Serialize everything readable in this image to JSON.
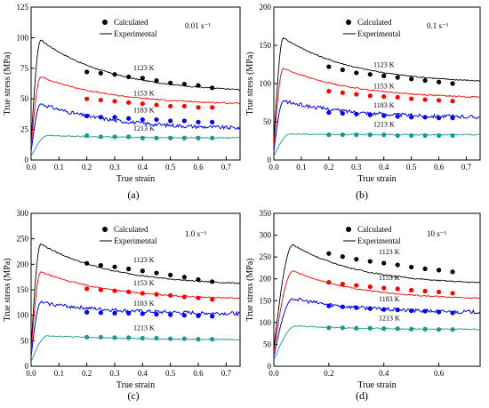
{
  "chart_data": [
    {
      "type": "line",
      "panel_label": "(a)",
      "condition": "0.01 s⁻¹",
      "xlabel": "True strain",
      "ylabel": "True stress (MPa)",
      "xlim": [
        0,
        0.75
      ],
      "ylim": [
        0,
        125
      ],
      "xticks": [
        "0.0",
        "0.1",
        "0.2",
        "0.3",
        "0.4",
        "0.5",
        "0.6",
        "0.7"
      ],
      "xtick_values": [
        0,
        0.1,
        0.2,
        0.3,
        0.4,
        0.5,
        0.6,
        0.7
      ],
      "yticks": [
        "0",
        "25",
        "50",
        "75",
        "100",
        "125"
      ],
      "ytick_values": [
        0,
        25,
        50,
        75,
        100,
        125
      ],
      "legend": {
        "calculated": "Calculated",
        "experimental": "Experimental"
      },
      "series": [
        {
          "name": "1123 K",
          "color": "#000000",
          "peak_x": 0.035,
          "peak_y": 98,
          "end_y": 55,
          "calculated": {
            "x": [
              0.2,
              0.25,
              0.3,
              0.35,
              0.4,
              0.45,
              0.5,
              0.55,
              0.6,
              0.65
            ],
            "y": [
              72,
              71,
              70,
              68,
              67,
              65,
              63,
              62,
              61,
              59
            ]
          }
        },
        {
          "name": "1153 K",
          "color": "#ff0000",
          "peak_x": 0.035,
          "peak_y": 68,
          "end_y": 45,
          "calculated": {
            "x": [
              0.2,
              0.25,
              0.3,
              0.35,
              0.4,
              0.45,
              0.5,
              0.55,
              0.6,
              0.65
            ],
            "y": [
              50,
              49,
              48,
              47,
              46,
              45,
              44,
              44,
              43,
              43
            ]
          }
        },
        {
          "name": "1183 K",
          "color": "#0000ff",
          "peak_x": 0.035,
          "peak_y": 46,
          "end_y": 25,
          "calculated": {
            "x": [
              0.2,
              0.25,
              0.3,
              0.35,
              0.4,
              0.45,
              0.5,
              0.55,
              0.6,
              0.65
            ],
            "y": [
              36,
              35,
              35,
              34,
              33,
              33,
              32,
              32,
              31,
              31
            ]
          }
        },
        {
          "name": "1213 K",
          "color": "#1a9a8a",
          "peak_x": 0.06,
          "peak_y": 20,
          "end_y": 18,
          "calculated": {
            "x": [
              0.2,
              0.25,
              0.3,
              0.35,
              0.4,
              0.45,
              0.5,
              0.55,
              0.6,
              0.65
            ],
            "y": [
              20,
              19,
              19,
              19,
              18,
              18,
              18,
              18,
              18,
              18
            ]
          }
        }
      ]
    },
    {
      "type": "line",
      "panel_label": "(b)",
      "condition": "0.1 s⁻¹",
      "xlabel": "True strain",
      "ylabel": "True stress (MPa)",
      "xlim": [
        0,
        0.75
      ],
      "ylim": [
        0,
        200
      ],
      "xticks": [
        "0.0",
        "0.1",
        "0.2",
        "0.3",
        "0.4",
        "0.5",
        "0.6",
        "0.7"
      ],
      "xtick_values": [
        0,
        0.1,
        0.2,
        0.3,
        0.4,
        0.5,
        0.6,
        0.7
      ],
      "yticks": [
        "0",
        "50",
        "100",
        "150",
        "200"
      ],
      "ytick_values": [
        0,
        50,
        100,
        150,
        200
      ],
      "legend": {
        "calculated": "Calculated",
        "experimental": "Experimental"
      },
      "series": [
        {
          "name": "1123 K",
          "color": "#000000",
          "peak_x": 0.035,
          "peak_y": 160,
          "end_y": 100,
          "calculated": {
            "x": [
              0.2,
              0.25,
              0.3,
              0.35,
              0.4,
              0.45,
              0.5,
              0.55,
              0.6,
              0.65
            ],
            "y": [
              122,
              118,
              114,
              112,
              110,
              108,
              106,
              104,
              102,
              100
            ]
          }
        },
        {
          "name": "1153 K",
          "color": "#ff0000",
          "peak_x": 0.035,
          "peak_y": 120,
          "end_y": 80,
          "calculated": {
            "x": [
              0.2,
              0.25,
              0.3,
              0.35,
              0.4,
              0.45,
              0.5,
              0.55,
              0.6,
              0.65
            ],
            "y": [
              90,
              88,
              86,
              84,
              83,
              82,
              80,
              79,
              78,
              77
            ]
          }
        },
        {
          "name": "1183 K",
          "color": "#0000ff",
          "peak_x": 0.035,
          "peak_y": 77,
          "end_y": 55,
          "calculated": {
            "x": [
              0.2,
              0.25,
              0.3,
              0.35,
              0.4,
              0.45,
              0.5,
              0.55,
              0.6,
              0.65
            ],
            "y": [
              62,
              61,
              60,
              59,
              58,
              57,
              56,
              56,
              55,
              55
            ]
          }
        },
        {
          "name": "1213 K",
          "color": "#1a9a8a",
          "peak_x": 0.06,
          "peak_y": 34,
          "end_y": 33,
          "calculated": {
            "x": [
              0.2,
              0.25,
              0.3,
              0.35,
              0.4,
              0.45,
              0.5,
              0.55,
              0.6,
              0.65
            ],
            "y": [
              33,
              33,
              33,
              33,
              33,
              32,
              32,
              32,
              32,
              32
            ]
          }
        }
      ]
    },
    {
      "type": "line",
      "panel_label": "(c)",
      "condition": "1.0 s⁻¹",
      "xlabel": "True strain",
      "ylabel": "True stress (MPa)",
      "xlim": [
        0,
        0.75
      ],
      "ylim": [
        0,
        300
      ],
      "xticks": [
        "0.0",
        "0.1",
        "0.2",
        "0.3",
        "0.4",
        "0.5",
        "0.6",
        "0.7"
      ],
      "xtick_values": [
        0,
        0.1,
        0.2,
        0.3,
        0.4,
        0.5,
        0.6,
        0.7
      ],
      "yticks": [
        "0",
        "50",
        "100",
        "150",
        "200",
        "250",
        "300"
      ],
      "ytick_values": [
        0,
        50,
        100,
        150,
        200,
        250,
        300
      ],
      "legend": {
        "calculated": "Calculated",
        "experimental": "Experimental"
      },
      "series": [
        {
          "name": "1123 K",
          "color": "#000000",
          "peak_x": 0.035,
          "peak_y": 240,
          "end_y": 158,
          "calculated": {
            "x": [
              0.2,
              0.25,
              0.3,
              0.35,
              0.4,
              0.45,
              0.5,
              0.55,
              0.6,
              0.65
            ],
            "y": [
              202,
              198,
              195,
              191,
              187,
              183,
              179,
              175,
              170,
              166
            ]
          }
        },
        {
          "name": "1153 K",
          "color": "#ff0000",
          "peak_x": 0.035,
          "peak_y": 185,
          "end_y": 130,
          "calculated": {
            "x": [
              0.2,
              0.25,
              0.3,
              0.35,
              0.4,
              0.45,
              0.5,
              0.55,
              0.6,
              0.65
            ],
            "y": [
              152,
              150,
              148,
              146,
              143,
              141,
              139,
              136,
              134,
              131
            ]
          }
        },
        {
          "name": "1183 K",
          "color": "#0000ff",
          "peak_x": 0.035,
          "peak_y": 125,
          "end_y": 102,
          "calculated": {
            "x": [
              0.2,
              0.25,
              0.3,
              0.35,
              0.4,
              0.45,
              0.5,
              0.55,
              0.6,
              0.65
            ],
            "y": [
              106,
              105,
              104,
              104,
              103,
              102,
              101,
              100,
              99,
              98
            ]
          }
        },
        {
          "name": "1213 K",
          "color": "#1a9a8a",
          "peak_x": 0.06,
          "peak_y": 60,
          "end_y": 52,
          "calculated": {
            "x": [
              0.2,
              0.25,
              0.3,
              0.35,
              0.4,
              0.45,
              0.5,
              0.55,
              0.6,
              0.65
            ],
            "y": [
              57,
              57,
              56,
              56,
              55,
              55,
              54,
              54,
              53,
              53
            ]
          }
        }
      ]
    },
    {
      "type": "line",
      "panel_label": "(d)",
      "condition": "10 s⁻¹",
      "xlabel": "True strain",
      "ylabel": "True stress (MPa)",
      "xlim": [
        0,
        0.75
      ],
      "ylim": [
        0,
        350
      ],
      "xticks": [
        "0.0",
        "0.2",
        "0.4",
        "0.6"
      ],
      "xtick_values": [
        0,
        0.2,
        0.4,
        0.6
      ],
      "yticks": [
        "0",
        "50",
        "100",
        "150",
        "200",
        "250",
        "300",
        "350"
      ],
      "ytick_values": [
        0,
        50,
        100,
        150,
        200,
        250,
        300,
        350
      ],
      "legend": {
        "calculated": "Calculated",
        "experimental": "Experimental"
      },
      "series": [
        {
          "name": "1123 K",
          "color": "#000000",
          "peak_x": 0.07,
          "peak_y": 278,
          "end_y": 186,
          "calculated": {
            "x": [
              0.2,
              0.25,
              0.3,
              0.35,
              0.4,
              0.45,
              0.5,
              0.55,
              0.6,
              0.65
            ],
            "y": [
              258,
              251,
              245,
              240,
              236,
              232,
              227,
              223,
              220,
              216
            ]
          }
        },
        {
          "name": "1153 K",
          "color": "#ff0000",
          "peak_x": 0.07,
          "peak_y": 218,
          "end_y": 152,
          "calculated": {
            "x": [
              0.2,
              0.25,
              0.3,
              0.35,
              0.4,
              0.45,
              0.5,
              0.55,
              0.6,
              0.65
            ],
            "y": [
              192,
              188,
              185,
              182,
              179,
              177,
              174,
              172,
              170,
              167
            ]
          }
        },
        {
          "name": "1183 K",
          "color": "#0000ff",
          "peak_x": 0.07,
          "peak_y": 155,
          "end_y": 122,
          "calculated": {
            "x": [
              0.2,
              0.25,
              0.3,
              0.35,
              0.4,
              0.45,
              0.5,
              0.55,
              0.6,
              0.65
            ],
            "y": [
              138,
              136,
              134,
              132,
              130,
              129,
              127,
              126,
              124,
              122
            ]
          }
        },
        {
          "name": "1213 K",
          "color": "#1a9a8a",
          "peak_x": 0.08,
          "peak_y": 92,
          "end_y": 84,
          "calculated": {
            "x": [
              0.2,
              0.25,
              0.3,
              0.35,
              0.4,
              0.45,
              0.5,
              0.55,
              0.6,
              0.65
            ],
            "y": [
              88,
              88,
              87,
              87,
              86,
              86,
              85,
              85,
              84,
              84
            ]
          }
        }
      ]
    }
  ]
}
